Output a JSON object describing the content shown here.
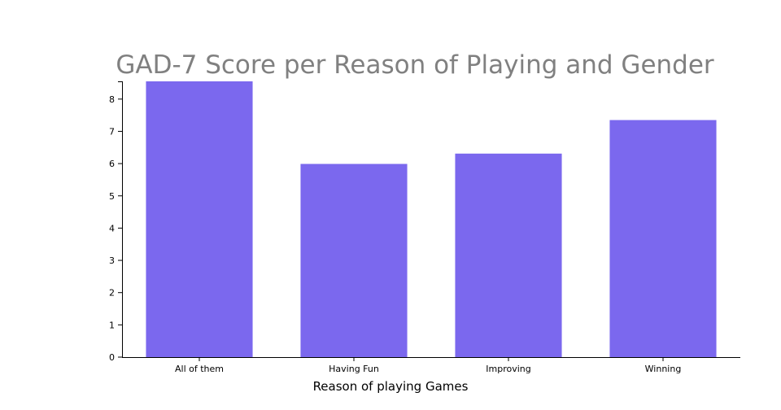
{
  "chart_data": {
    "type": "bar",
    "title": "GAD-7 Score per Reason of Playing and Gender",
    "xlabel": "Reason of playing Games",
    "ylabel": "",
    "categories": [
      "All of them",
      "Having Fun",
      "Improving",
      "Winning"
    ],
    "values": [
      8.55,
      5.99,
      6.31,
      7.35
    ],
    "ylim": [
      0,
      8.55
    ],
    "yticks": [
      0,
      1,
      2,
      3,
      4,
      5,
      6,
      7,
      8
    ],
    "grid": false,
    "bar_color": "#7B68EE",
    "title_color": "#808080"
  }
}
